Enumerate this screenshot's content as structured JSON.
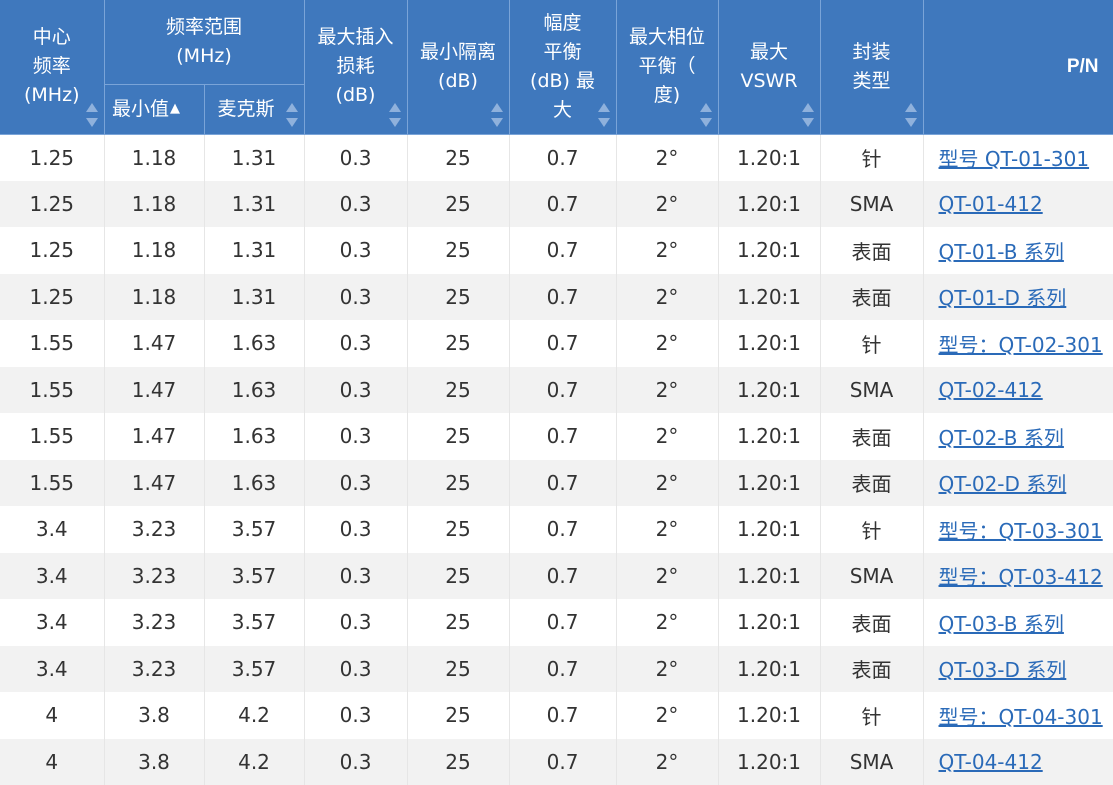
{
  "columns": {
    "center_freq": "中心\n频率\n(MHz)",
    "freq_range": "频率范围\n(MHz)",
    "freq_min": "最小值",
    "freq_max": "麦克斯",
    "insertion_loss": "最大插入\n损耗\n(dB)",
    "isolation": "最小隔离\n(dB)",
    "amp_balance": "幅度\n平衡\n(dB)  最\n大",
    "phase_balance": "最大相位\n平衡（\n度)",
    "vswr": "最大 VSWR",
    "package": "封装\n类型",
    "pn": "P/N"
  },
  "sort_active_mark": "▲",
  "rows": [
    {
      "center": "1.25",
      "min": "1.18",
      "max": "1.31",
      "il": "0.3",
      "iso": "25",
      "amp": "0.7",
      "phase": "2°",
      "vswr": "1.20:1",
      "pkg": "针",
      "pn": "型号 QT-01-301"
    },
    {
      "center": "1.25",
      "min": "1.18",
      "max": "1.31",
      "il": "0.3",
      "iso": "25",
      "amp": "0.7",
      "phase": "2°",
      "vswr": "1.20:1",
      "pkg": "SMA",
      "pn": "QT-01-412"
    },
    {
      "center": "1.25",
      "min": "1.18",
      "max": "1.31",
      "il": "0.3",
      "iso": "25",
      "amp": "0.7",
      "phase": "2°",
      "vswr": "1.20:1",
      "pkg": "表面",
      "pn": "QT-01-B 系列"
    },
    {
      "center": "1.25",
      "min": "1.18",
      "max": "1.31",
      "il": "0.3",
      "iso": "25",
      "amp": "0.7",
      "phase": "2°",
      "vswr": "1.20:1",
      "pkg": "表面",
      "pn": "QT-01-D 系列"
    },
    {
      "center": "1.55",
      "min": "1.47",
      "max": "1.63",
      "il": "0.3",
      "iso": "25",
      "amp": "0.7",
      "phase": "2°",
      "vswr": "1.20:1",
      "pkg": "针",
      "pn": "型号：QT-02-301"
    },
    {
      "center": "1.55",
      "min": "1.47",
      "max": "1.63",
      "il": "0.3",
      "iso": "25",
      "amp": "0.7",
      "phase": "2°",
      "vswr": "1.20:1",
      "pkg": "SMA",
      "pn": "QT-02-412"
    },
    {
      "center": "1.55",
      "min": "1.47",
      "max": "1.63",
      "il": "0.3",
      "iso": "25",
      "amp": "0.7",
      "phase": "2°",
      "vswr": "1.20:1",
      "pkg": "表面",
      "pn": "QT-02-B 系列"
    },
    {
      "center": "1.55",
      "min": "1.47",
      "max": "1.63",
      "il": "0.3",
      "iso": "25",
      "amp": "0.7",
      "phase": "2°",
      "vswr": "1.20:1",
      "pkg": "表面",
      "pn": "QT-02-D 系列"
    },
    {
      "center": "3.4",
      "min": "3.23",
      "max": "3.57",
      "il": "0.3",
      "iso": "25",
      "amp": "0.7",
      "phase": "2°",
      "vswr": "1.20:1",
      "pkg": "针",
      "pn": "型号：QT-03-301"
    },
    {
      "center": "3.4",
      "min": "3.23",
      "max": "3.57",
      "il": "0.3",
      "iso": "25",
      "amp": "0.7",
      "phase": "2°",
      "vswr": "1.20:1",
      "pkg": "SMA",
      "pn": "型号：QT-03-412"
    },
    {
      "center": "3.4",
      "min": "3.23",
      "max": "3.57",
      "il": "0.3",
      "iso": "25",
      "amp": "0.7",
      "phase": "2°",
      "vswr": "1.20:1",
      "pkg": "表面",
      "pn": "QT-03-B 系列"
    },
    {
      "center": "3.4",
      "min": "3.23",
      "max": "3.57",
      "il": "0.3",
      "iso": "25",
      "amp": "0.7",
      "phase": "2°",
      "vswr": "1.20:1",
      "pkg": "表面",
      "pn": "QT-03-D 系列"
    },
    {
      "center": "4",
      "min": "3.8",
      "max": "4.2",
      "il": "0.3",
      "iso": "25",
      "amp": "0.7",
      "phase": "2°",
      "vswr": "1.20:1",
      "pkg": "针",
      "pn": "型号：QT-04-301"
    },
    {
      "center": "4",
      "min": "3.8",
      "max": "4.2",
      "il": "0.3",
      "iso": "25",
      "amp": "0.7",
      "phase": "2°",
      "vswr": "1.20:1",
      "pkg": "SMA",
      "pn": "QT-04-412"
    }
  ]
}
